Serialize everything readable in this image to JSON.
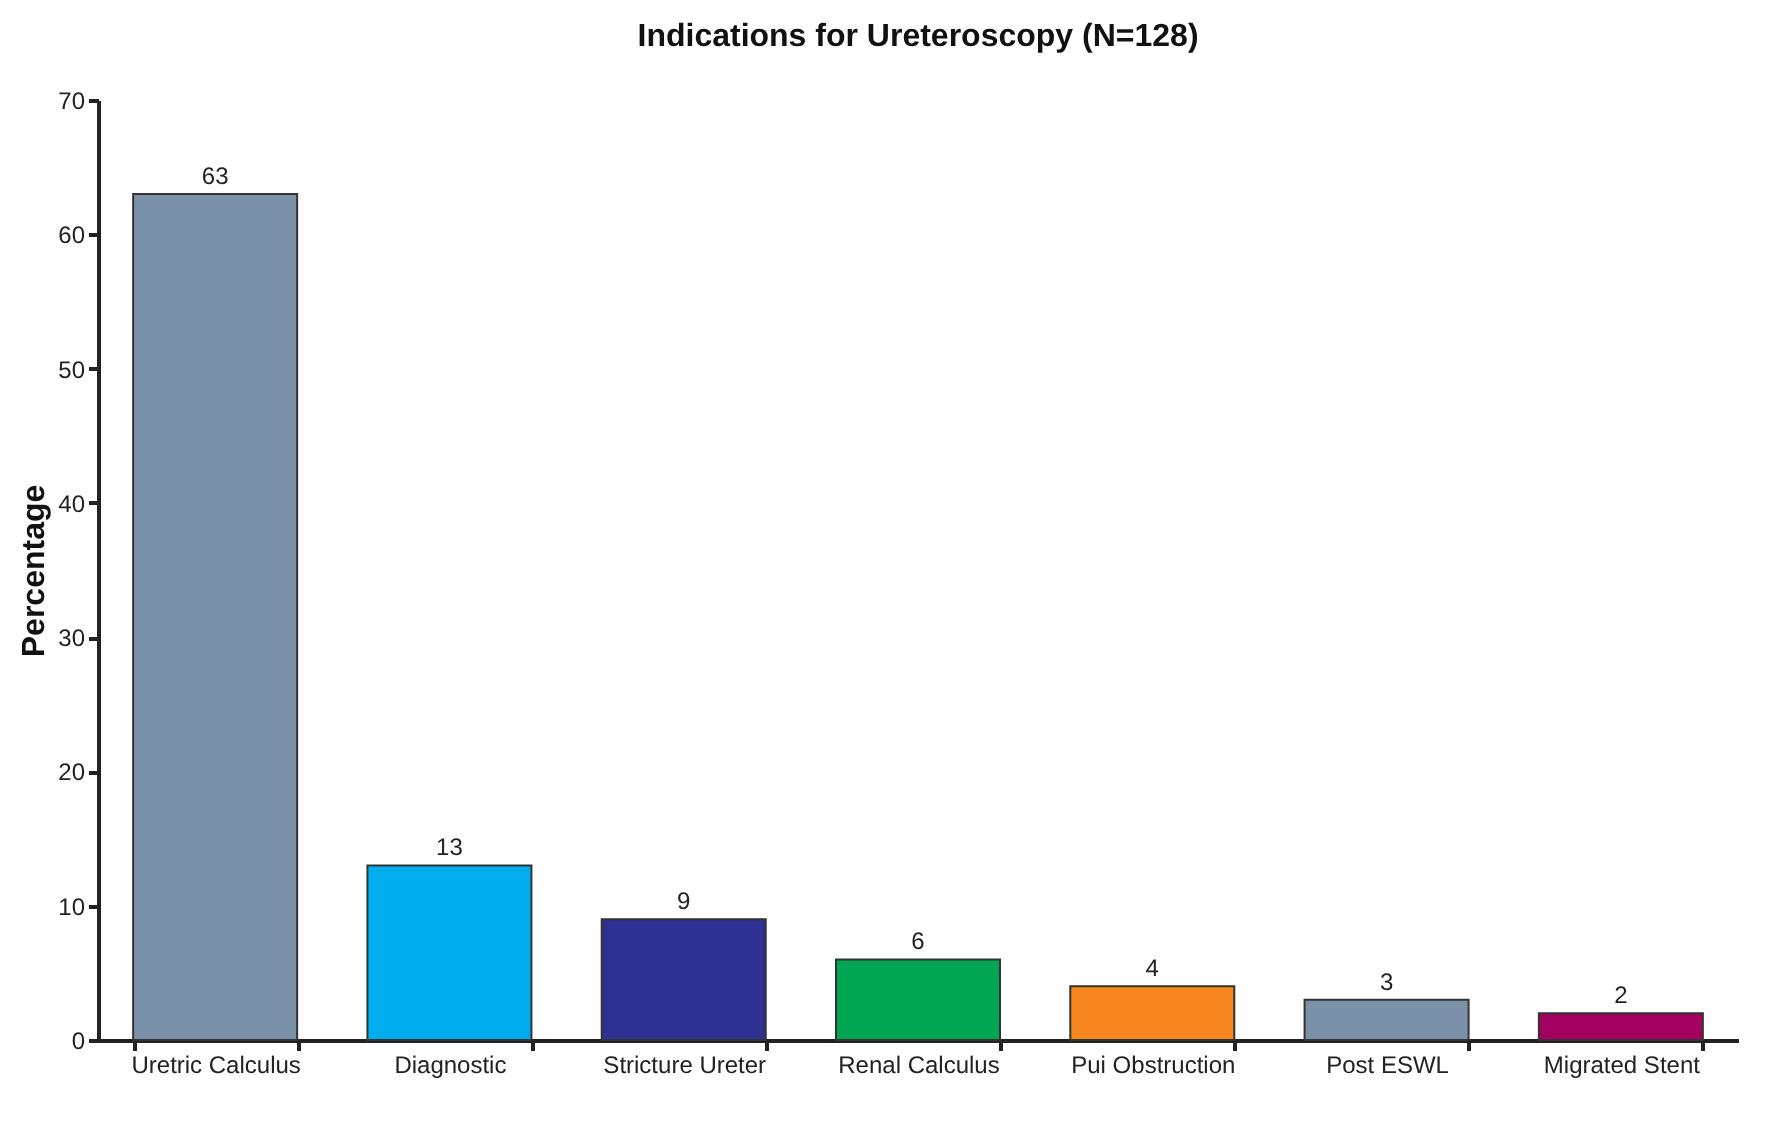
{
  "chart_data": {
    "type": "bar",
    "title": "Indications for Ureteroscopy (N=128)",
    "ylabel": "Percentage",
    "categories": [
      "Uretric Calculus",
      "Diagnostic",
      "Stricture Ureter",
      "Renal Calculus",
      "Pui Obstruction",
      "Post ESWL",
      "Migrated Stent"
    ],
    "values": [
      63,
      13,
      9,
      6,
      4,
      3,
      2
    ],
    "colors": [
      "#7b91a8",
      "#00aeef",
      "#2e3192",
      "#00a651",
      "#f7861f",
      "#7b91a8",
      "#a3005f"
    ],
    "ylim": [
      0,
      70
    ],
    "yticks": [
      0,
      10,
      20,
      30,
      40,
      50,
      60,
      70
    ],
    "grid": false,
    "data_labels": true
  }
}
